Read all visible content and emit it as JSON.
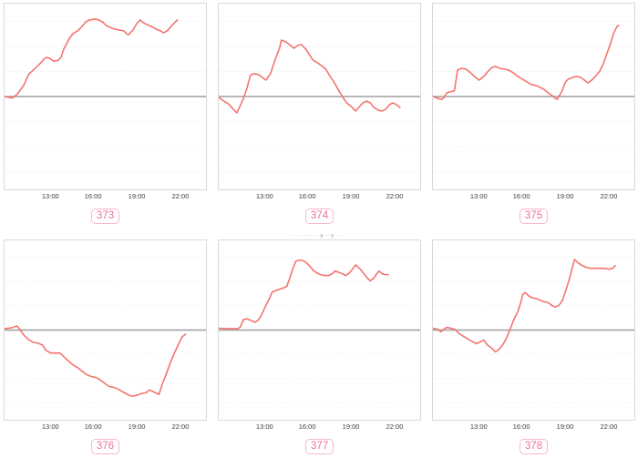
{
  "chart_data": {
    "type": "line",
    "layout": "2x3 grid of small time-series panels",
    "x_ticks": [
      "13:00",
      "16:00",
      "19:00",
      "22:00"
    ],
    "tick_positions_pct": [
      23,
      44,
      65.5,
      87
    ],
    "gridline_positions_pct": [
      9.5,
      23,
      36.5,
      63.5,
      77,
      90.5
    ],
    "baseline_pct": 50,
    "y_axis": "unlabeled; gray horizontal line marks zero/baseline at mid-panel",
    "colors": {
      "line": "#f4746f",
      "baseline": "#9e9e9e",
      "grid": "#e9e9e9",
      "panel_border": "#d9d9d9",
      "tick_text": "#3b3b3b",
      "badge_text": "#ee7097",
      "badge_border": "#f6b9cc",
      "title_text": "#9e9e9e"
    },
    "charts": [
      {
        "label": "373",
        "title": "··· ···· ·· ···",
        "points_pct": [
          [
            0,
            50
          ],
          [
            4,
            50.8
          ],
          [
            6.5,
            48.5
          ],
          [
            9.5,
            44
          ],
          [
            12,
            38
          ],
          [
            14,
            36
          ],
          [
            17,
            33
          ],
          [
            20,
            29.4
          ],
          [
            21,
            29
          ],
          [
            22.5,
            29.5
          ],
          [
            24.3,
            31
          ],
          [
            26.6,
            30.5
          ],
          [
            28,
            29
          ],
          [
            29.4,
            24.5
          ],
          [
            31.7,
            19.6
          ],
          [
            33.9,
            16.2
          ],
          [
            36.2,
            14.7
          ],
          [
            38.1,
            12.7
          ],
          [
            40.4,
            9.8
          ],
          [
            42.2,
            8.8
          ],
          [
            45,
            8.3
          ],
          [
            46.8,
            8.8
          ],
          [
            48.6,
            9.8
          ],
          [
            50.5,
            11.8
          ],
          [
            52.3,
            12.7
          ],
          [
            54.6,
            13.7
          ],
          [
            56.9,
            14.2
          ],
          [
            59.2,
            14.7
          ],
          [
            60.6,
            16.2
          ],
          [
            61.5,
            16.7
          ],
          [
            63.8,
            14.2
          ],
          [
            65.6,
            10.8
          ],
          [
            67.4,
            8.8
          ],
          [
            68.3,
            9.8
          ],
          [
            70.6,
            11.3
          ],
          [
            72.9,
            12.3
          ],
          [
            75.2,
            13.7
          ],
          [
            77.5,
            14.7
          ],
          [
            78.9,
            15.7
          ],
          [
            80.7,
            14.7
          ],
          [
            82.6,
            12.3
          ],
          [
            84.4,
            10.3
          ],
          [
            85.8,
            8.8
          ]
        ]
      },
      {
        "label": "374",
        "title": "··· ···· ·· ···",
        "points_pct": [
          [
            0,
            50.5
          ],
          [
            2.6,
            52.5
          ],
          [
            4.9,
            54
          ],
          [
            7.6,
            57.3
          ],
          [
            9,
            58.8
          ],
          [
            11.7,
            52.5
          ],
          [
            13.9,
            46
          ],
          [
            15.7,
            38.6
          ],
          [
            17.5,
            37.7
          ],
          [
            19.8,
            38.2
          ],
          [
            21.6,
            39.7
          ],
          [
            23.4,
            41.2
          ],
          [
            25.7,
            37.7
          ],
          [
            27.9,
            30.4
          ],
          [
            30.2,
            24
          ],
          [
            31.1,
            19.6
          ],
          [
            33.3,
            20.6
          ],
          [
            35.6,
            22.5
          ],
          [
            37.4,
            24
          ],
          [
            39.2,
            22.5
          ],
          [
            41,
            22
          ],
          [
            43.2,
            24.5
          ],
          [
            45,
            27.5
          ],
          [
            46.8,
            30.4
          ],
          [
            49.1,
            31.9
          ],
          [
            50.9,
            33.3
          ],
          [
            53.2,
            35.3
          ],
          [
            55,
            38.7
          ],
          [
            57.2,
            42.2
          ],
          [
            59.5,
            46.6
          ],
          [
            61.7,
            50.5
          ],
          [
            63.5,
            53.4
          ],
          [
            65.8,
            55.4
          ],
          [
            68,
            57.8
          ],
          [
            70.3,
            54.9
          ],
          [
            71.6,
            53.4
          ],
          [
            73.4,
            52.5
          ],
          [
            75.2,
            53.4
          ],
          [
            77,
            55.9
          ],
          [
            79.3,
            57.4
          ],
          [
            81.1,
            57.8
          ],
          [
            82.9,
            56.9
          ],
          [
            84.7,
            54.4
          ],
          [
            86.5,
            53.4
          ],
          [
            88.2,
            54.4
          ],
          [
            90,
            55.9
          ]
        ]
      },
      {
        "label": "375",
        "title": "··· ···· ·· ···",
        "points_pct": [
          [
            0,
            50
          ],
          [
            2.4,
            51
          ],
          [
            4.5,
            51.5
          ],
          [
            5.4,
            50.5
          ],
          [
            6.9,
            48
          ],
          [
            9.2,
            47.3
          ],
          [
            10.7,
            46.8
          ],
          [
            12.2,
            35.8
          ],
          [
            14.3,
            34.8
          ],
          [
            16.6,
            35.3
          ],
          [
            18.8,
            37.3
          ],
          [
            21.1,
            39.7
          ],
          [
            23,
            41.2
          ],
          [
            25.2,
            39.2
          ],
          [
            27.1,
            36.8
          ],
          [
            29.3,
            34.3
          ],
          [
            31.1,
            33.8
          ],
          [
            33.2,
            34.8
          ],
          [
            35.4,
            35.3
          ],
          [
            37.7,
            35.8
          ],
          [
            40,
            37.3
          ],
          [
            42.2,
            39.2
          ],
          [
            44.5,
            40.7
          ],
          [
            46.8,
            42.2
          ],
          [
            49,
            43.6
          ],
          [
            51.3,
            44.1
          ],
          [
            53.2,
            45.1
          ],
          [
            55,
            46.1
          ],
          [
            57.2,
            48
          ],
          [
            59.2,
            49.5
          ],
          [
            60.8,
            51
          ],
          [
            61.7,
            51.5
          ],
          [
            64,
            47.3
          ],
          [
            65.8,
            42.2
          ],
          [
            67.1,
            40.7
          ],
          [
            69.4,
            39.7
          ],
          [
            71.2,
            39.2
          ],
          [
            73.4,
            39.7
          ],
          [
            75.2,
            41.2
          ],
          [
            77,
            42.7
          ],
          [
            78.8,
            41.2
          ],
          [
            80.6,
            39.2
          ],
          [
            82.9,
            36.3
          ],
          [
            84.7,
            32
          ],
          [
            86.5,
            26.5
          ],
          [
            88.3,
            21.1
          ],
          [
            89.6,
            16.2
          ],
          [
            91.4,
            12.3
          ],
          [
            92.3,
            11.8
          ]
        ]
      },
      {
        "label": "376",
        "title": "",
        "points_pct": [
          [
            0,
            49.2
          ],
          [
            3.7,
            48.7
          ],
          [
            6,
            47.7
          ],
          [
            7.3,
            49.2
          ],
          [
            9.6,
            52.8
          ],
          [
            11.9,
            55.3
          ],
          [
            14.2,
            56.8
          ],
          [
            16.5,
            57.3
          ],
          [
            18.8,
            58.3
          ],
          [
            20.6,
            61.3
          ],
          [
            22.9,
            62.8
          ],
          [
            25.2,
            62.8
          ],
          [
            27.5,
            62.8
          ],
          [
            29.4,
            64.8
          ],
          [
            31.7,
            67.3
          ],
          [
            33.9,
            69.3
          ],
          [
            36.2,
            70.9
          ],
          [
            38.5,
            72.9
          ],
          [
            40.8,
            74.9
          ],
          [
            43.1,
            75.9
          ],
          [
            45.4,
            76.4
          ],
          [
            47.7,
            77.9
          ],
          [
            50,
            79.9
          ],
          [
            51.8,
            81.4
          ],
          [
            54.1,
            81.9
          ],
          [
            56.4,
            82.9
          ],
          [
            58.7,
            84.4
          ],
          [
            61,
            85.9
          ],
          [
            63.3,
            86.9
          ],
          [
            65.6,
            86.4
          ],
          [
            67.9,
            85.4
          ],
          [
            70.2,
            84.9
          ],
          [
            72,
            83.4
          ],
          [
            73.9,
            84.4
          ],
          [
            75.7,
            85.4
          ],
          [
            76.6,
            85.9
          ],
          [
            78.4,
            79.9
          ],
          [
            80.3,
            74.4
          ],
          [
            82.1,
            68.8
          ],
          [
            83.9,
            63.8
          ],
          [
            86.2,
            58.3
          ],
          [
            88.1,
            53.8
          ],
          [
            89.9,
            52.3
          ]
        ]
      },
      {
        "label": "377",
        "title": "··· · ··-· ···g ···g ·· ··",
        "points_pct": [
          [
            0,
            49
          ],
          [
            5,
            49.2
          ],
          [
            9.5,
            49.2
          ],
          [
            10.8,
            48.2
          ],
          [
            12.2,
            44.2
          ],
          [
            14,
            43.7
          ],
          [
            16.2,
            44.7
          ],
          [
            18,
            45.7
          ],
          [
            19.8,
            44.2
          ],
          [
            21.2,
            41.7
          ],
          [
            23,
            37.2
          ],
          [
            25.2,
            32.2
          ],
          [
            26.6,
            28.7
          ],
          [
            28,
            28.2
          ],
          [
            30.2,
            27.2
          ],
          [
            32,
            26.6
          ],
          [
            33.8,
            25.6
          ],
          [
            35.1,
            21.6
          ],
          [
            36.5,
            16.6
          ],
          [
            38.3,
            11.6
          ],
          [
            39.6,
            11.1
          ],
          [
            41.4,
            11.1
          ],
          [
            43.2,
            12.1
          ],
          [
            45,
            14.1
          ],
          [
            46.8,
            16.6
          ],
          [
            48.6,
            18.1
          ],
          [
            50.5,
            19.1
          ],
          [
            52.7,
            19.6
          ],
          [
            54.5,
            19.6
          ],
          [
            56.3,
            18.6
          ],
          [
            57.7,
            17.1
          ],
          [
            59,
            17.6
          ],
          [
            61.3,
            18.6
          ],
          [
            63.1,
            19.6
          ],
          [
            64.9,
            18.1
          ],
          [
            66.7,
            15.6
          ],
          [
            68,
            13.6
          ],
          [
            70.3,
            16.1
          ],
          [
            72.1,
            18.6
          ],
          [
            73.9,
            21.1
          ],
          [
            75.2,
            22.6
          ],
          [
            77,
            21.1
          ],
          [
            78.4,
            18.6
          ],
          [
            79.7,
            17.1
          ],
          [
            81.1,
            18.6
          ],
          [
            82.4,
            19.1
          ],
          [
            84.2,
            19.1
          ]
        ]
      },
      {
        "label": "378",
        "title": "",
        "points_pct": [
          [
            0,
            49
          ],
          [
            2.3,
            49.5
          ],
          [
            4,
            51
          ],
          [
            5.4,
            49.5
          ],
          [
            6.8,
            48.5
          ],
          [
            9,
            49
          ],
          [
            10.8,
            49.5
          ],
          [
            13,
            52
          ],
          [
            15.3,
            53.6
          ],
          [
            17.6,
            55.1
          ],
          [
            19.8,
            56.6
          ],
          [
            21.6,
            57.6
          ],
          [
            23.4,
            56.6
          ],
          [
            25.2,
            55.6
          ],
          [
            27,
            58.2
          ],
          [
            29.3,
            60.2
          ],
          [
            31.1,
            62.2
          ],
          [
            32.9,
            60.7
          ],
          [
            34.7,
            58.2
          ],
          [
            36.5,
            54.6
          ],
          [
            38.3,
            49.5
          ],
          [
            40.1,
            44.4
          ],
          [
            42.3,
            39.3
          ],
          [
            43.7,
            34.2
          ],
          [
            44.6,
            30.1
          ],
          [
            45.9,
            29.1
          ],
          [
            47.7,
            31.1
          ],
          [
            49.5,
            32.1
          ],
          [
            51.8,
            32.6
          ],
          [
            53.6,
            33.6
          ],
          [
            55.4,
            34.2
          ],
          [
            57.2,
            34.7
          ],
          [
            59,
            36.2
          ],
          [
            60.8,
            37.2
          ],
          [
            62.6,
            36.2
          ],
          [
            64.4,
            33.2
          ],
          [
            66.2,
            27.1
          ],
          [
            67.6,
            22.1
          ],
          [
            68.9,
            16.6
          ],
          [
            70.3,
            10.6
          ],
          [
            72.1,
            12.6
          ],
          [
            74.3,
            14.1
          ],
          [
            76.1,
            15.1
          ],
          [
            78.4,
            15.6
          ],
          [
            80.6,
            15.6
          ],
          [
            82.9,
            15.6
          ],
          [
            85.1,
            15.6
          ],
          [
            87.4,
            16.1
          ],
          [
            89.2,
            15.6
          ],
          [
            90.5,
            14.1
          ]
        ]
      }
    ]
  }
}
